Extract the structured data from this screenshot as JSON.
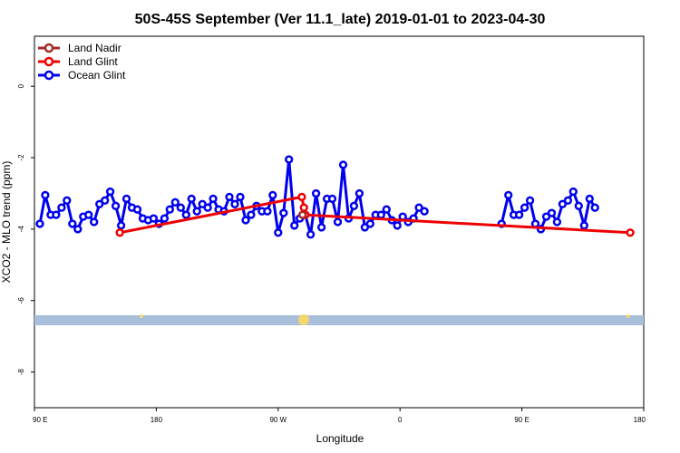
{
  "chart_data": {
    "type": "line",
    "title": "50S-45S September (Ver 11.1_late)   2019-01-01 to 2023-04-30",
    "xlabel": "Longitude",
    "ylabel": "XCO2 - MLO trend (ppm)",
    "xlim": [
      90,
      450
    ],
    "ylim": [
      -9,
      1.4
    ],
    "x_ticks": [
      {
        "value": 90,
        "label": "90 E"
      },
      {
        "value": 180,
        "label": "180"
      },
      {
        "value": 270,
        "label": "90 W"
      },
      {
        "value": 360,
        "label": "0"
      },
      {
        "value": 450,
        "label": "90 E"
      },
      {
        "value": 540,
        "label": "180"
      }
    ],
    "y_ticks": [
      {
        "value": 0,
        "label": "0"
      },
      {
        "value": -2,
        "label": "-2"
      },
      {
        "value": -4,
        "label": "-4"
      },
      {
        "value": -6,
        "label": "-6"
      },
      {
        "value": -8,
        "label": "-8"
      }
    ],
    "legend": {
      "position": "top-left"
    },
    "series": [
      {
        "name": "Land Nadir",
        "color": "#a52a2a",
        "points": [
          [
            288,
            -3.6
          ]
        ]
      },
      {
        "name": "Land Glint",
        "color": "#ee0000",
        "points": [
          [
            153,
            -4.1
          ],
          [
            287.5,
            -3.1
          ],
          [
            289,
            -3.4
          ],
          [
            290,
            -3.6
          ],
          [
            530,
            -4.1
          ]
        ]
      },
      {
        "name": "Ocean Glint",
        "color": "#0000ee",
        "points": [
          [
            94,
            -3.85
          ],
          [
            98,
            -3.05
          ],
          [
            102,
            -3.6
          ],
          [
            106,
            -3.6
          ],
          [
            110,
            -3.4
          ],
          [
            114,
            -3.2
          ],
          [
            118,
            -3.85
          ],
          [
            122,
            -4.0
          ],
          [
            126,
            -3.65
          ],
          [
            130,
            -3.6
          ],
          [
            134,
            -3.8
          ],
          [
            138,
            -3.3
          ],
          [
            142,
            -3.2
          ],
          [
            146,
            -2.95
          ],
          [
            150,
            -3.35
          ],
          [
            154,
            -3.9
          ],
          [
            158,
            -3.15
          ],
          [
            162,
            -3.4
          ],
          [
            166,
            -3.45
          ],
          [
            170,
            -3.7
          ],
          [
            174,
            -3.75
          ],
          [
            178,
            -3.7
          ],
          [
            182,
            -3.85
          ],
          [
            186,
            -3.7
          ],
          [
            190,
            -3.45
          ],
          [
            194,
            -3.25
          ],
          [
            198,
            -3.4
          ],
          [
            202,
            -3.6
          ],
          [
            206,
            -3.15
          ],
          [
            210,
            -3.5
          ],
          [
            214,
            -3.3
          ],
          [
            218,
            -3.4
          ],
          [
            222,
            -3.15
          ],
          [
            226,
            -3.45
          ],
          [
            230,
            -3.5
          ],
          [
            234,
            -3.1
          ],
          [
            238,
            -3.3
          ],
          [
            242,
            -3.1
          ],
          [
            246,
            -3.75
          ],
          [
            250,
            -3.6
          ],
          [
            254,
            -3.35
          ],
          [
            258,
            -3.5
          ],
          [
            262,
            -3.5
          ],
          [
            266,
            -3.05
          ],
          [
            270,
            -4.1
          ],
          [
            274,
            -3.55
          ],
          [
            278,
            -2.05
          ],
          [
            282,
            -3.9
          ],
          [
            286,
            -3.7
          ],
          [
            290,
            -3.6
          ],
          [
            294,
            -4.15
          ],
          [
            298,
            -3.0
          ],
          [
            302,
            -3.95
          ],
          [
            306,
            -3.15
          ],
          [
            310,
            -3.15
          ],
          [
            314,
            -3.8
          ],
          [
            318,
            -2.2
          ],
          [
            322,
            -3.7
          ],
          [
            326,
            -3.35
          ],
          [
            330,
            -3.0
          ],
          [
            334,
            -3.95
          ],
          [
            338,
            -3.85
          ],
          [
            342,
            -3.6
          ],
          [
            346,
            -3.6
          ],
          [
            350,
            -3.45
          ],
          [
            354,
            -3.75
          ],
          [
            358,
            -3.9
          ],
          [
            362,
            -3.65
          ],
          [
            366,
            -3.8
          ],
          [
            370,
            -3.7
          ],
          [
            374,
            -3.4
          ],
          [
            378,
            -3.5
          ]
        ],
        "break_after_x": 378,
        "points_b": [
          [
            435,
            -3.85
          ],
          [
            440,
            -3.05
          ],
          [
            444,
            -3.6
          ],
          [
            448,
            -3.6
          ],
          [
            452,
            -3.4
          ],
          [
            456,
            -3.2
          ],
          [
            460,
            -3.85
          ],
          [
            464,
            -4.0
          ],
          [
            468,
            -3.65
          ],
          [
            472,
            -3.55
          ],
          [
            476,
            -3.8
          ],
          [
            480,
            -3.3
          ],
          [
            484,
            -3.2
          ],
          [
            488,
            -2.95
          ],
          [
            492,
            -3.35
          ],
          [
            496,
            -3.9
          ],
          [
            500,
            -3.15
          ],
          [
            504,
            -3.4
          ]
        ]
      }
    ]
  }
}
